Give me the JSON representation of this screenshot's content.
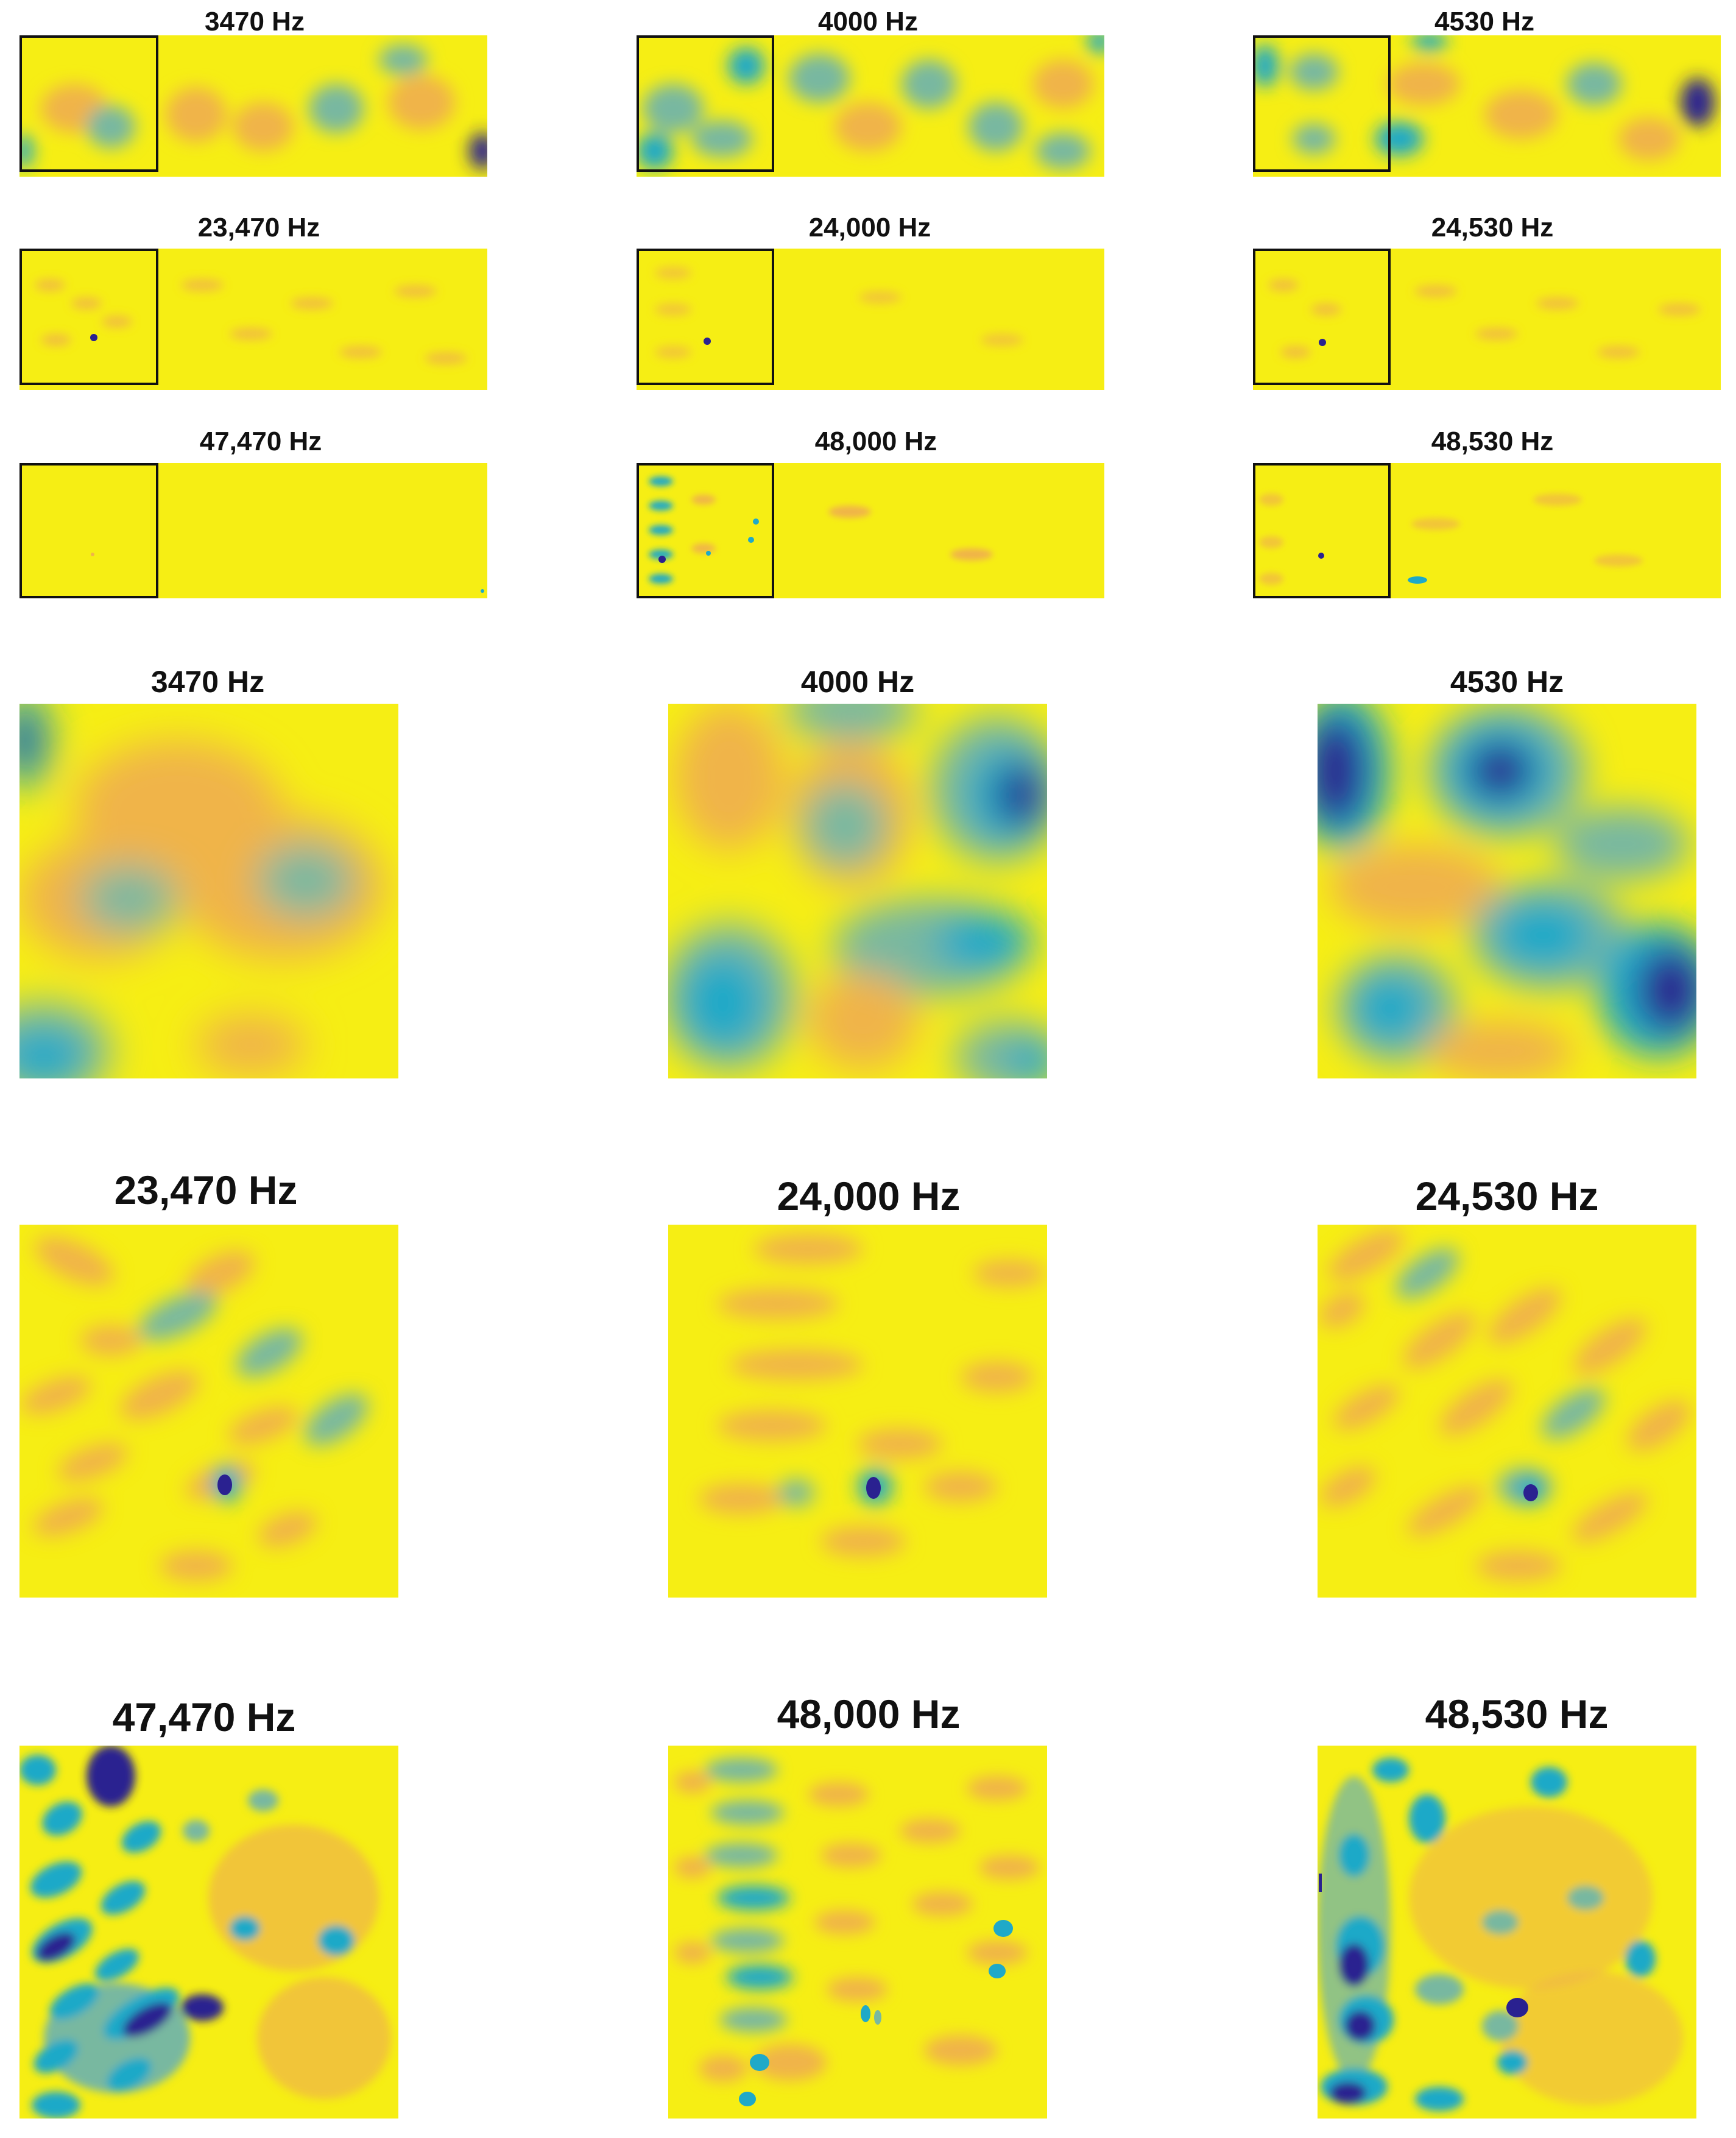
{
  "colors": {
    "background_field": "#f6ee14",
    "low_level": "#2a2190",
    "mid_level": "#1fa9c8",
    "transition": "#78b8a0",
    "high_level": "#f0b44a",
    "inset_outline": "#111111"
  },
  "overview": {
    "rows": [
      {
        "titles": [
          "3470 Hz",
          "4000 Hz",
          "4530 Hz"
        ]
      },
      {
        "titles": [
          "23,470 Hz",
          "24,000 Hz",
          "24,530 Hz"
        ]
      },
      {
        "titles": [
          "47,470 Hz",
          "48,000 Hz",
          "48,530 Hz"
        ]
      }
    ]
  },
  "detail": {
    "rows": [
      {
        "titles": [
          "3470 Hz",
          "4000 Hz",
          "4530 Hz"
        ]
      },
      {
        "titles": [
          "23,470 Hz",
          "24,000 Hz",
          "24,530 Hz"
        ]
      },
      {
        "titles": [
          "47,470 Hz",
          "48,000 Hz",
          "48,530 Hz"
        ]
      }
    ]
  }
}
